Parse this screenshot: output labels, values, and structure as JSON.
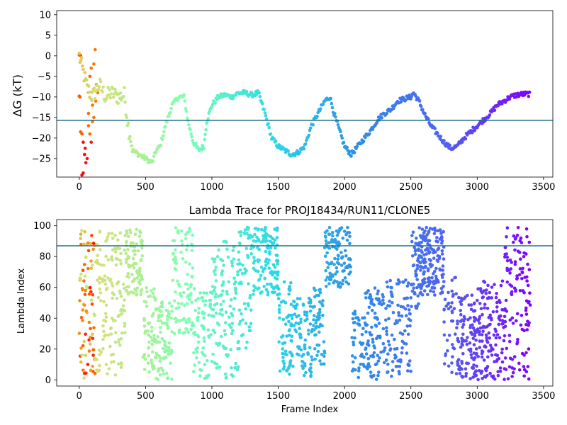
{
  "chart_data": [
    {
      "type": "scatter",
      "title": "",
      "xlabel": "",
      "ylabel": "ΔG (kT)",
      "xlim": [
        -170,
        3570
      ],
      "ylim": [
        -29.5,
        11
      ],
      "xticks": [
        0,
        500,
        1000,
        1500,
        2000,
        2500,
        3000,
        3500
      ],
      "xtick_labels": [
        "0",
        "500",
        "1000",
        "1500",
        "2000",
        "2500",
        "3000",
        "3500"
      ],
      "yticks": [
        -25,
        -20,
        -15,
        -10,
        -5,
        0,
        5,
        10
      ],
      "ytick_labels": [
        "−25",
        "−20",
        "−15",
        "−10",
        "−5",
        "0",
        "5",
        "10"
      ],
      "hline": -15.7,
      "hline_color": "#1f6f8b",
      "colormap": "rainbow",
      "color_stops": [
        "#ff0000",
        "#ff7f00",
        "#d4e17a",
        "#80ffb4",
        "#2ad9e8",
        "#2f8de6",
        "#4f63f0",
        "#8000ff"
      ],
      "x_max": 3400,
      "trace_points": [
        [
          0,
          0
        ],
        [
          60,
          -8
        ],
        [
          100,
          -10
        ],
        [
          150,
          -7
        ],
        [
          200,
          -10
        ],
        [
          240,
          -9
        ],
        [
          300,
          -10
        ],
        [
          340,
          -9.5
        ],
        [
          370,
          -17
        ],
        [
          400,
          -23
        ],
        [
          450,
          -24
        ],
        [
          500,
          -25
        ],
        [
          550,
          -26
        ],
        [
          580,
          -23
        ],
        [
          610,
          -22
        ],
        [
          650,
          -17
        ],
        [
          700,
          -12
        ],
        [
          750,
          -10
        ],
        [
          790,
          -10
        ],
        [
          820,
          -16
        ],
        [
          860,
          -21
        ],
        [
          900,
          -23
        ],
        [
          940,
          -22
        ],
        [
          960,
          -16
        ],
        [
          1000,
          -12
        ],
        [
          1050,
          -10
        ],
        [
          1100,
          -9.5
        ],
        [
          1150,
          -10
        ],
        [
          1200,
          -9
        ],
        [
          1250,
          -9
        ],
        [
          1300,
          -9.5
        ],
        [
          1350,
          -9
        ],
        [
          1400,
          -14
        ],
        [
          1450,
          -20
        ],
        [
          1500,
          -22
        ],
        [
          1550,
          -23
        ],
        [
          1600,
          -24
        ],
        [
          1650,
          -23.5
        ],
        [
          1700,
          -22
        ],
        [
          1750,
          -17
        ],
        [
          1800,
          -14
        ],
        [
          1850,
          -11
        ],
        [
          1890,
          -10
        ],
        [
          1920,
          -14
        ],
        [
          1970,
          -19
        ],
        [
          2000,
          -22
        ],
        [
          2050,
          -24
        ],
        [
          2100,
          -22
        ],
        [
          2150,
          -20
        ],
        [
          2200,
          -18
        ],
        [
          2250,
          -15.5
        ],
        [
          2300,
          -14
        ],
        [
          2350,
          -13
        ],
        [
          2400,
          -11
        ],
        [
          2450,
          -10.5
        ],
        [
          2500,
          -10
        ],
        [
          2520,
          -9
        ],
        [
          2560,
          -11
        ],
        [
          2600,
          -14
        ],
        [
          2650,
          -17
        ],
        [
          2700,
          -19
        ],
        [
          2750,
          -21
        ],
        [
          2800,
          -22.5
        ],
        [
          2850,
          -22
        ],
        [
          2900,
          -20
        ],
        [
          2950,
          -18.5
        ],
        [
          3000,
          -17
        ],
        [
          3050,
          -15.5
        ],
        [
          3100,
          -14
        ],
        [
          3150,
          -12
        ],
        [
          3200,
          -11
        ],
        [
          3250,
          -10
        ],
        [
          3300,
          -9.5
        ],
        [
          3350,
          -9.3
        ],
        [
          3400,
          -9.3
        ]
      ],
      "early_scatter": [
        [
          0,
          0.2
        ],
        [
          10,
          0.1
        ],
        [
          0,
          -9.8
        ],
        [
          5,
          -10
        ],
        [
          10,
          -18.5
        ],
        [
          20,
          -19
        ],
        [
          30,
          -21
        ],
        [
          40,
          -24
        ],
        [
          50,
          -26
        ],
        [
          20,
          -29
        ],
        [
          30,
          -28.5
        ],
        [
          45,
          -22.5
        ],
        [
          60,
          -25
        ],
        [
          70,
          -14
        ],
        [
          80,
          -5
        ],
        [
          90,
          -3
        ],
        [
          100,
          -12
        ],
        [
          110,
          -2
        ],
        [
          120,
          1.5
        ],
        [
          130,
          -7
        ],
        [
          140,
          -9
        ],
        [
          90,
          -21
        ],
        [
          100,
          -16
        ],
        [
          110,
          -15
        ],
        [
          125,
          -11
        ],
        [
          70,
          -17
        ],
        [
          80,
          -19
        ]
      ]
    },
    {
      "type": "scatter",
      "title": "Lambda Trace for PROJ18434/RUN11/CLONE5",
      "xlabel": "Frame Index",
      "ylabel": "Lambda Index",
      "xlim": [
        -170,
        3570
      ],
      "ylim": [
        -4,
        104
      ],
      "xticks": [
        0,
        500,
        1000,
        1500,
        2000,
        2500,
        3000,
        3500
      ],
      "xtick_labels": [
        "0",
        "500",
        "1000",
        "1500",
        "2000",
        "2500",
        "3000",
        "3500"
      ],
      "yticks": [
        0,
        20,
        40,
        60,
        80,
        100
      ],
      "ytick_labels": [
        "0",
        "20",
        "40",
        "60",
        "80",
        "100"
      ],
      "hline": 87,
      "hline_color": "#1f6f8b",
      "colormap": "rainbow",
      "segments": [
        [
          0,
          40,
          0,
          98
        ],
        [
          40,
          130,
          3,
          99
        ],
        [
          130,
          250,
          2,
          99
        ],
        [
          250,
          350,
          3,
          99
        ],
        [
          350,
          480,
          55,
          99
        ],
        [
          480,
          580,
          5,
          60
        ],
        [
          580,
          700,
          0,
          55
        ],
        [
          700,
          860,
          30,
          99
        ],
        [
          860,
          1000,
          0,
          60
        ],
        [
          1000,
          1200,
          0,
          90
        ],
        [
          1200,
          1300,
          20,
          99
        ],
        [
          1300,
          1500,
          55,
          99
        ],
        [
          1500,
          1600,
          0,
          65
        ],
        [
          1600,
          1750,
          2,
          55
        ],
        [
          1750,
          1850,
          10,
          60
        ],
        [
          1850,
          2050,
          60,
          99
        ],
        [
          2050,
          2150,
          0,
          45
        ],
        [
          2150,
          2300,
          0,
          60
        ],
        [
          2300,
          2500,
          2,
          65
        ],
        [
          2500,
          2570,
          45,
          99
        ],
        [
          2570,
          2750,
          55,
          99
        ],
        [
          2750,
          2850,
          0,
          70
        ],
        [
          2850,
          3000,
          0,
          55
        ],
        [
          3000,
          3200,
          0,
          65
        ],
        [
          3200,
          3400,
          0,
          99
        ]
      ],
      "segment_weights": [
        30,
        60,
        70,
        60,
        90,
        60,
        80,
        90,
        70,
        120,
        60,
        120,
        60,
        80,
        60,
        110,
        40,
        90,
        100,
        50,
        150,
        40,
        110,
        130,
        130
      ]
    }
  ]
}
